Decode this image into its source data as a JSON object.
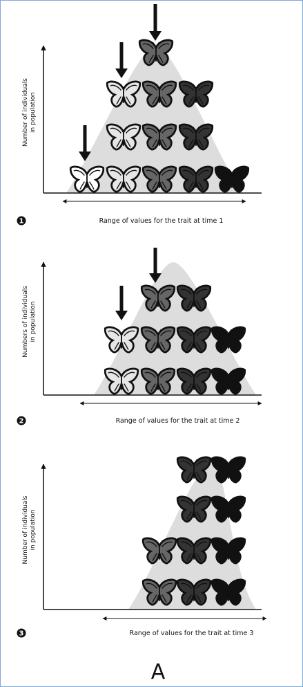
{
  "panels": [
    {
      "step": "1",
      "y_label": [
        "Number of individuals",
        "in population"
      ],
      "x_label": "Range of values for the trait at time 1"
    },
    {
      "step": "2",
      "y_label": [
        "Numbers of individuals",
        "in population"
      ],
      "x_label": "Range of values for the trait at time 2"
    },
    {
      "step": "3",
      "y_label": [
        "Number of individuals",
        "in population"
      ],
      "x_label": "Range of values for the trait at time 3"
    }
  ],
  "caption": "A"
}
